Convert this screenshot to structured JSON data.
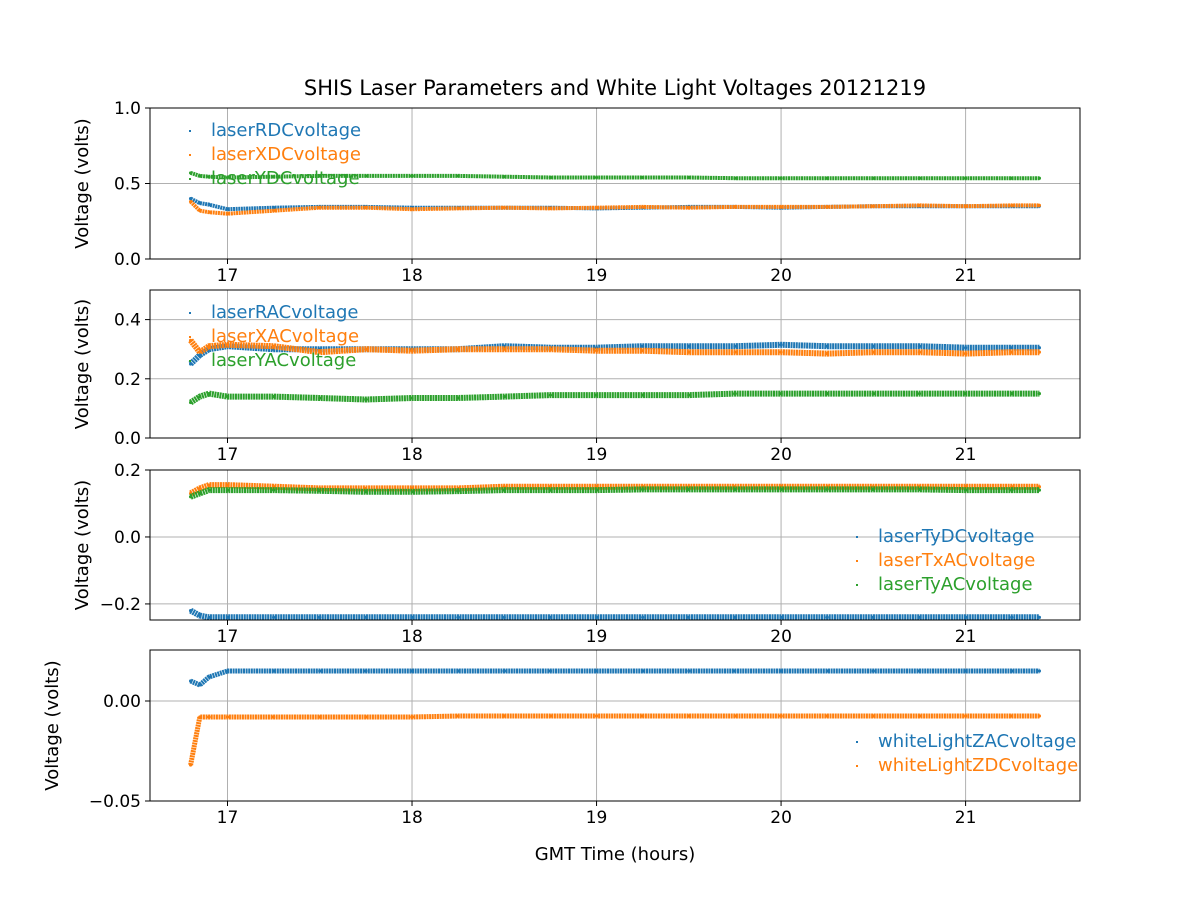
{
  "chart_data": {
    "type": "scatter",
    "title": "SHIS Laser Parameters and White Light Voltages 20121219",
    "xlabel": "GMT Time (hours)",
    "xlim": [
      16.58,
      21.62
    ],
    "xticks": [
      17,
      18,
      19,
      20,
      21
    ],
    "grid": true,
    "x": [
      16.8,
      16.85,
      16.9,
      17.0,
      17.25,
      17.5,
      17.75,
      18.0,
      18.25,
      18.5,
      18.75,
      19.0,
      19.25,
      19.5,
      19.75,
      20.0,
      20.25,
      20.5,
      20.75,
      21.0,
      21.25,
      21.4
    ],
    "panels": [
      {
        "ylabel": "Voltage (volts)",
        "ylim": [
          0.0,
          1.0
        ],
        "yticks": [
          0.0,
          0.5,
          1.0
        ],
        "ytick_labels": [
          "0.0",
          "0.5",
          "1.0"
        ],
        "legend": "upper-left",
        "series": [
          {
            "name": "laserRDCvoltage",
            "color": "#1f77b4",
            "values": [
              0.4,
              0.37,
              0.36,
              0.33,
              0.34,
              0.345,
              0.345,
              0.34,
              0.34,
              0.34,
              0.34,
              0.335,
              0.34,
              0.345,
              0.345,
              0.34,
              0.345,
              0.35,
              0.35,
              0.35,
              0.35,
              0.35
            ]
          },
          {
            "name": "laserXDCvoltage",
            "color": "#ff7f0e",
            "values": [
              0.38,
              0.32,
              0.31,
              0.3,
              0.32,
              0.34,
              0.34,
              0.33,
              0.335,
              0.34,
              0.335,
              0.34,
              0.345,
              0.34,
              0.345,
              0.345,
              0.345,
              0.35,
              0.355,
              0.35,
              0.355,
              0.355
            ]
          },
          {
            "name": "laserYDCvoltage",
            "color": "#2ca02c",
            "values": [
              0.57,
              0.55,
              0.545,
              0.54,
              0.545,
              0.55,
              0.55,
              0.55,
              0.55,
              0.545,
              0.54,
              0.54,
              0.54,
              0.54,
              0.535,
              0.535,
              0.535,
              0.535,
              0.535,
              0.535,
              0.535,
              0.535
            ]
          }
        ]
      },
      {
        "ylabel": "Voltage (volts)",
        "ylim": [
          0.0,
          0.5
        ],
        "yticks": [
          0.0,
          0.2,
          0.4
        ],
        "ytick_labels": [
          "0.0",
          "0.2",
          "0.4"
        ],
        "legend": "upper-left",
        "series": [
          {
            "name": "laserRACvoltage",
            "color": "#1f77b4",
            "values": [
              0.25,
              0.28,
              0.3,
              0.31,
              0.3,
              0.3,
              0.3,
              0.3,
              0.3,
              0.31,
              0.305,
              0.305,
              0.31,
              0.31,
              0.31,
              0.315,
              0.31,
              0.31,
              0.31,
              0.305,
              0.305,
              0.305
            ]
          },
          {
            "name": "laserXACvoltage",
            "color": "#ff7f0e",
            "values": [
              0.33,
              0.29,
              0.31,
              0.315,
              0.31,
              0.29,
              0.3,
              0.295,
              0.3,
              0.3,
              0.3,
              0.295,
              0.295,
              0.29,
              0.29,
              0.29,
              0.285,
              0.29,
              0.29,
              0.285,
              0.29,
              0.29
            ]
          },
          {
            "name": "laserYACvoltage",
            "color": "#2ca02c",
            "values": [
              0.12,
              0.14,
              0.15,
              0.14,
              0.14,
              0.135,
              0.13,
              0.135,
              0.135,
              0.14,
              0.145,
              0.145,
              0.145,
              0.145,
              0.15,
              0.15,
              0.15,
              0.15,
              0.15,
              0.15,
              0.15,
              0.15
            ]
          }
        ]
      },
      {
        "ylabel": "Voltage (volts)",
        "ylim": [
          -0.248,
          0.2
        ],
        "yticks": [
          -0.2,
          0.0,
          0.2
        ],
        "ytick_labels": [
          "−0.2",
          "0.0",
          "0.2"
        ],
        "legend": "lower-right",
        "series": [
          {
            "name": "laserTyDCvoltage",
            "color": "#1f77b4",
            "values": [
              -0.22,
              -0.235,
              -0.24,
              -0.24,
              -0.24,
              -0.24,
              -0.24,
              -0.24,
              -0.24,
              -0.24,
              -0.24,
              -0.24,
              -0.24,
              -0.24,
              -0.24,
              -0.24,
              -0.24,
              -0.24,
              -0.24,
              -0.24,
              -0.24,
              -0.24
            ]
          },
          {
            "name": "laserTxACvoltage",
            "color": "#ff7f0e",
            "values": [
              0.13,
              0.145,
              0.155,
              0.155,
              0.15,
              0.145,
              0.145,
              0.145,
              0.145,
              0.15,
              0.15,
              0.15,
              0.15,
              0.15,
              0.15,
              0.15,
              0.15,
              0.15,
              0.15,
              0.15,
              0.15,
              0.15
            ]
          },
          {
            "name": "laserTyACvoltage",
            "color": "#2ca02c",
            "values": [
              0.12,
              0.13,
              0.14,
              0.14,
              0.14,
              0.138,
              0.135,
              0.135,
              0.137,
              0.14,
              0.14,
              0.14,
              0.142,
              0.142,
              0.142,
              0.142,
              0.142,
              0.142,
              0.142,
              0.14,
              0.14,
              0.14
            ]
          }
        ]
      },
      {
        "ylabel": "Voltage (volts)",
        "ylim": [
          -0.05,
          0.0255
        ],
        "yticks": [
          -0.05,
          0.0
        ],
        "ytick_labels": [
          "−0.05",
          "0.00"
        ],
        "legend": "lower-right",
        "series": [
          {
            "name": "whiteLightZACvoltage",
            "color": "#1f77b4",
            "values": [
              0.01,
              0.008,
              0.012,
              0.015,
              0.015,
              0.015,
              0.015,
              0.015,
              0.015,
              0.015,
              0.015,
              0.015,
              0.015,
              0.015,
              0.015,
              0.015,
              0.015,
              0.015,
              0.015,
              0.015,
              0.015,
              0.015
            ]
          },
          {
            "name": "whiteLightZDCvoltage",
            "color": "#ff7f0e",
            "values": [
              -0.032,
              -0.008,
              -0.008,
              -0.008,
              -0.008,
              -0.008,
              -0.008,
              -0.008,
              -0.0075,
              -0.0075,
              -0.0075,
              -0.0075,
              -0.0075,
              -0.0075,
              -0.0075,
              -0.0075,
              -0.0075,
              -0.0075,
              -0.0075,
              -0.0075,
              -0.0075,
              -0.0075
            ]
          }
        ]
      }
    ]
  }
}
